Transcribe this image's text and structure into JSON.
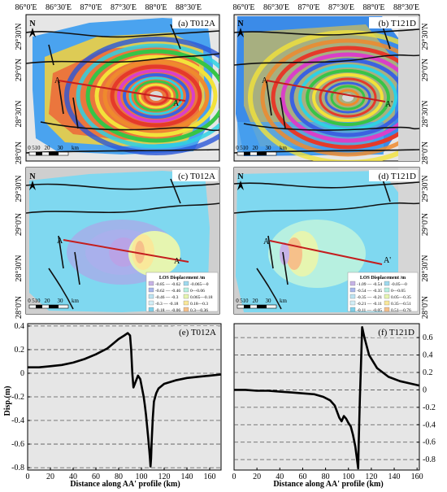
{
  "top_lon_labels": [
    "86°0'E",
    "86°30'E",
    "87°0'E",
    "87°30'E",
    "88°0'E",
    "88°30'E"
  ],
  "top_lon_labels_right": [
    "86°0'E",
    "86°30'E",
    "87°0'E",
    "87°30'E",
    "88°0'E",
    "88°30'E"
  ],
  "lat_labels": [
    "29°30'N",
    "29°0'N",
    "28°30'N",
    "28°0'N"
  ],
  "panels": {
    "a": {
      "title": "(a) T012A",
      "point_a": "A",
      "point_a_prime": "A'"
    },
    "b": {
      "title": "(b) T121D",
      "point_a": "A",
      "point_a_prime": "A'"
    },
    "c": {
      "title": "(c) T012A",
      "point_a": "A",
      "point_a_prime": "A'"
    },
    "d": {
      "title": "(d) T121D",
      "point_a": "A",
      "point_a_prime": "A'"
    }
  },
  "north_label": "N",
  "scale_labels": [
    "0",
    "5",
    "10",
    "20",
    "30",
    "km"
  ],
  "legend_c": {
    "title": "LOS Displacement /m",
    "items": [
      {
        "label": "-0.85 — -0.62",
        "color": "#c7b3e6"
      },
      {
        "label": "-0.065—0",
        "color": "#9fd9ee"
      },
      {
        "label": "-0.62 — -0.46",
        "color": "#a8b6ec"
      },
      {
        "label": "0—0.06",
        "color": "#b7f0e0"
      },
      {
        "label": "-0.46 — -0.3",
        "color": "#bde4f2"
      },
      {
        "label": "0.065—0.18",
        "color": "#e6f5b0"
      },
      {
        "label": "-0.3 — -0.18",
        "color": "#d2eef7"
      },
      {
        "label": "0.18—0.3",
        "color": "#f9e89a"
      },
      {
        "label": "-0.18 — -0.06",
        "color": "#7fd0ea"
      },
      {
        "label": "0.3—0.36",
        "color": "#f6c08a"
      }
    ]
  },
  "legend_d": {
    "title": "LOS Displacement /m",
    "items": [
      {
        "label": "-1.09 — -0.54",
        "color": "#c7b3e6"
      },
      {
        "label": "-0.05—0",
        "color": "#9fd9ee"
      },
      {
        "label": "-0.54 — -0.35",
        "color": "#a8b6ec"
      },
      {
        "label": "0—0.05",
        "color": "#b7f0e0"
      },
      {
        "label": "-0.35 — -0.21",
        "color": "#bde4f2"
      },
      {
        "label": "0.05—0.35",
        "color": "#e6f5b0"
      },
      {
        "label": "-0.21 — -0.11",
        "color": "#d2eef7"
      },
      {
        "label": "0.35—0.51",
        "color": "#f9e89a"
      },
      {
        "label": "-0.11 — -0.05",
        "color": "#7fd0ea"
      },
      {
        "label": "0.51—0.76",
        "color": "#f6c08a"
      }
    ]
  },
  "chart_data": [
    {
      "type": "line",
      "title": "(e) T012A",
      "xlabel": "Distance along AA' profile (km)",
      "ylabel": "Disp.(m)",
      "xlim": [
        0,
        170
      ],
      "ylim": [
        -0.82,
        0.42
      ],
      "xticks": [
        0,
        20,
        40,
        60,
        80,
        100,
        120,
        140,
        160
      ],
      "yticks": [
        0.4,
        0.2,
        0,
        -0.2,
        -0.4,
        -0.6,
        -0.8
      ],
      "ytick_labels": [
        "0.4",
        "0.2",
        "0",
        "-0.2",
        "-0.4",
        "-0.6",
        "-0.8"
      ],
      "grid": "horizontal dashed",
      "x": [
        0,
        10,
        20,
        30,
        40,
        50,
        60,
        70,
        75,
        80,
        85,
        88,
        90,
        91,
        92,
        93,
        95,
        97,
        99,
        100,
        101,
        102,
        103,
        104,
        105,
        106,
        107,
        107.5,
        108,
        108.5,
        109,
        110,
        111,
        113,
        115,
        120,
        130,
        140,
        150,
        160,
        170
      ],
      "y": [
        0.05,
        0.05,
        0.06,
        0.07,
        0.09,
        0.12,
        0.16,
        0.21,
        0.25,
        0.29,
        0.32,
        0.34,
        0.32,
        0.2,
        0.0,
        -0.12,
        -0.07,
        -0.02,
        -0.05,
        -0.1,
        -0.15,
        -0.2,
        -0.27,
        -0.35,
        -0.45,
        -0.55,
        -0.66,
        -0.72,
        -0.79,
        -0.72,
        -0.58,
        -0.38,
        -0.24,
        -0.17,
        -0.13,
        -0.09,
        -0.06,
        -0.04,
        -0.03,
        -0.02,
        -0.01
      ]
    },
    {
      "type": "line",
      "title": "(f) T121D",
      "xlabel": "Distance along AA' profile (km)",
      "ylabel": "",
      "xlim": [
        0,
        162
      ],
      "ylim": [
        -0.92,
        0.76
      ],
      "xticks": [
        0,
        20,
        40,
        60,
        80,
        100,
        120,
        140,
        160
      ],
      "yticks": [
        0.6,
        0.4,
        0.2,
        0,
        -0.2,
        -0.4,
        -0.6,
        -0.8
      ],
      "ytick_labels": [
        "0.6",
        "0.4",
        "0.2",
        "0",
        "-0.2",
        "-0.4",
        "-0.6",
        "-0.8"
      ],
      "grid": "horizontal dashed",
      "x": [
        0,
        10,
        20,
        30,
        40,
        50,
        60,
        70,
        78,
        84,
        88,
        90,
        92,
        94,
        96,
        98,
        100,
        102,
        104,
        106,
        107,
        108,
        108.5,
        109,
        110,
        111,
        112,
        114,
        118,
        125,
        135,
        145,
        155,
        162
      ],
      "y": [
        0.0,
        0.0,
        -0.01,
        -0.01,
        -0.02,
        -0.03,
        -0.04,
        -0.05,
        -0.08,
        -0.12,
        -0.18,
        -0.25,
        -0.32,
        -0.36,
        -0.3,
        -0.33,
        -0.38,
        -0.42,
        -0.52,
        -0.65,
        -0.75,
        -0.85,
        -0.9,
        -0.6,
        -0.1,
        0.3,
        0.72,
        0.6,
        0.4,
        0.25,
        0.15,
        0.1,
        0.07,
        0.05
      ]
    }
  ]
}
